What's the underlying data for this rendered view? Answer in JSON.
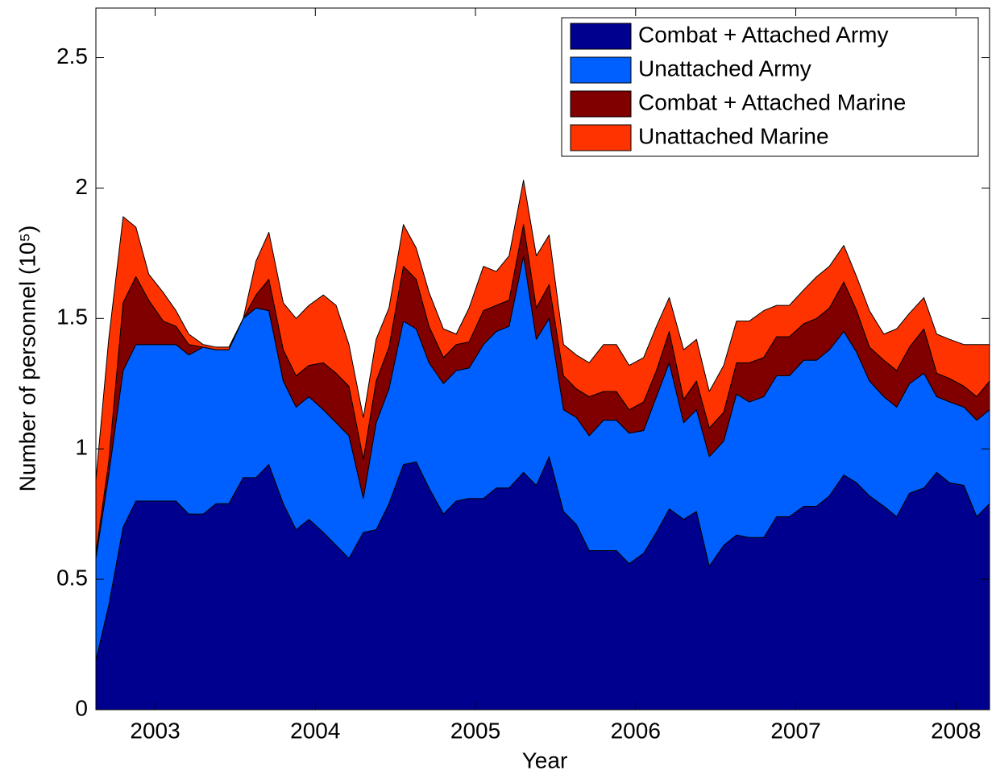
{
  "chart_data": {
    "type": "stacked-area",
    "xlabel": "Year",
    "ylabel": "Number of personnel (10⁵)",
    "xlim": [
      2002.63,
      2008.21
    ],
    "xticks": [
      2003,
      2004,
      2005,
      2006,
      2007,
      2008
    ],
    "ylim": [
      0,
      2.69
    ],
    "yticks": [
      0,
      0.5,
      1,
      1.5,
      2,
      2.5
    ],
    "legend": "upper right",
    "x": [
      2002.63,
      2002.71,
      2002.8,
      2002.88,
      2002.96,
      2003.05,
      2003.13,
      2003.21,
      2003.3,
      2003.38,
      2003.46,
      2003.55,
      2003.63,
      2003.71,
      2003.8,
      2003.88,
      2003.96,
      2004.05,
      2004.13,
      2004.21,
      2004.3,
      2004.38,
      2004.46,
      2004.55,
      2004.63,
      2004.71,
      2004.8,
      2004.88,
      2004.96,
      2005.05,
      2005.13,
      2005.21,
      2005.3,
      2005.38,
      2005.46,
      2005.55,
      2005.63,
      2005.71,
      2005.8,
      2005.88,
      2005.96,
      2006.05,
      2006.13,
      2006.21,
      2006.3,
      2006.38,
      2006.46,
      2006.55,
      2006.63,
      2006.71,
      2006.8,
      2006.88,
      2006.96,
      2007.05,
      2007.13,
      2007.21,
      2007.3,
      2007.38,
      2007.46,
      2007.55,
      2007.63,
      2007.71,
      2007.8,
      2007.88,
      2007.96,
      2008.05,
      2008.13,
      2008.21
    ],
    "series": [
      {
        "name": "Combat + Attached Army",
        "color": "#00008f",
        "values": [
          0.19,
          0.4,
          0.7,
          0.8,
          0.8,
          0.8,
          0.8,
          0.75,
          0.75,
          0.79,
          0.79,
          0.89,
          0.89,
          0.94,
          0.79,
          0.69,
          0.73,
          0.68,
          0.63,
          0.58,
          0.68,
          0.69,
          0.79,
          0.94,
          0.95,
          0.85,
          0.75,
          0.8,
          0.81,
          0.81,
          0.85,
          0.85,
          0.91,
          0.86,
          0.97,
          0.76,
          0.71,
          0.61,
          0.61,
          0.61,
          0.56,
          0.6,
          0.68,
          0.77,
          0.73,
          0.76,
          0.55,
          0.63,
          0.67,
          0.66,
          0.66,
          0.74,
          0.74,
          0.78,
          0.78,
          0.82,
          0.9,
          0.87,
          0.82,
          0.78,
          0.74,
          0.83,
          0.85,
          0.91,
          0.87,
          0.86,
          0.74,
          0.79
        ]
      },
      {
        "name": "Unattached Army",
        "color": "#0060ff",
        "values": [
          0.39,
          0.5,
          0.6,
          0.6,
          0.6,
          0.6,
          0.6,
          0.61,
          0.64,
          0.59,
          0.59,
          0.61,
          0.65,
          0.59,
          0.47,
          0.47,
          0.47,
          0.47,
          0.47,
          0.47,
          0.13,
          0.41,
          0.44,
          0.55,
          0.51,
          0.48,
          0.5,
          0.5,
          0.5,
          0.59,
          0.6,
          0.62,
          0.83,
          0.56,
          0.53,
          0.39,
          0.41,
          0.44,
          0.5,
          0.5,
          0.5,
          0.47,
          0.52,
          0.56,
          0.37,
          0.39,
          0.42,
          0.4,
          0.54,
          0.52,
          0.54,
          0.54,
          0.54,
          0.56,
          0.56,
          0.56,
          0.55,
          0.5,
          0.44,
          0.42,
          0.42,
          0.42,
          0.44,
          0.29,
          0.31,
          0.3,
          0.37,
          0.36
        ]
      },
      {
        "name": "Combat + Attached Marine",
        "color": "#800000",
        "values": [
          0.02,
          0.05,
          0.26,
          0.26,
          0.17,
          0.09,
          0.07,
          0.04,
          0,
          0,
          0,
          0,
          0.05,
          0.12,
          0.12,
          0.12,
          0.12,
          0.18,
          0.19,
          0.19,
          0.15,
          0.16,
          0.16,
          0.21,
          0.19,
          0.14,
          0.1,
          0.1,
          0.1,
          0.13,
          0.1,
          0.1,
          0.12,
          0.12,
          0.13,
          0.13,
          0.11,
          0.15,
          0.11,
          0.11,
          0.09,
          0.11,
          0.1,
          0.12,
          0.09,
          0.11,
          0.11,
          0.11,
          0.12,
          0.15,
          0.15,
          0.15,
          0.15,
          0.14,
          0.16,
          0.16,
          0.19,
          0.16,
          0.13,
          0.14,
          0.14,
          0.14,
          0.17,
          0.09,
          0.09,
          0.08,
          0.09,
          0.11
        ]
      },
      {
        "name": "Unattached Marine",
        "color": "#ff3300",
        "values": [
          0.28,
          0.47,
          0.33,
          0.19,
          0.1,
          0.11,
          0.06,
          0.04,
          0.01,
          0.01,
          0.01,
          0,
          0.13,
          0.18,
          0.18,
          0.22,
          0.23,
          0.26,
          0.26,
          0.16,
          0.16,
          0.16,
          0.15,
          0.16,
          0.12,
          0.13,
          0.11,
          0.04,
          0.13,
          0.17,
          0.13,
          0.17,
          0.17,
          0.2,
          0.19,
          0.12,
          0.13,
          0.13,
          0.18,
          0.18,
          0.17,
          0.17,
          0.17,
          0.13,
          0.19,
          0.16,
          0.14,
          0.18,
          0.16,
          0.16,
          0.18,
          0.12,
          0.12,
          0.13,
          0.16,
          0.16,
          0.14,
          0.13,
          0.14,
          0.1,
          0.16,
          0.13,
          0.12,
          0.15,
          0.15,
          0.16,
          0.2,
          0.14
        ]
      }
    ]
  }
}
